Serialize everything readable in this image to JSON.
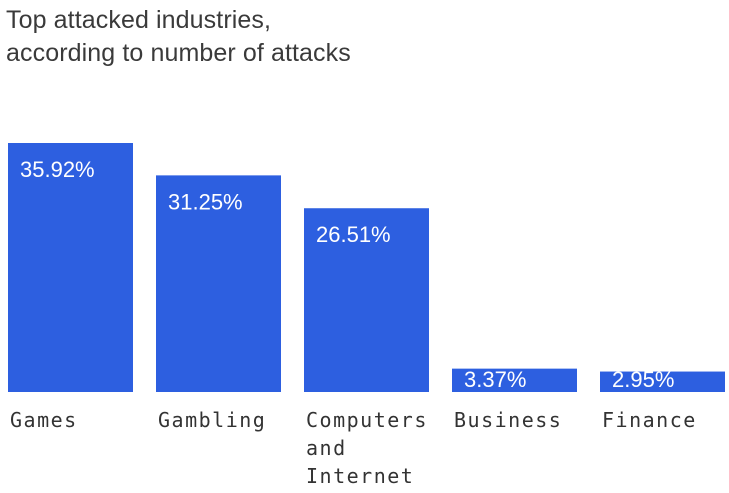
{
  "chart_data": {
    "type": "bar",
    "title_lines": [
      "Top attacked industries,",
      "according to number of attacks"
    ],
    "categories": [
      "Games",
      "Gambling",
      "Computers and Internet",
      "Business",
      "Finance"
    ],
    "category_label_lines": [
      [
        "Games"
      ],
      [
        "Gambling"
      ],
      [
        "Computers",
        "and",
        "Internet"
      ],
      [
        "Business"
      ],
      [
        "Finance"
      ]
    ],
    "values": [
      35.92,
      31.25,
      26.51,
      3.37,
      2.95
    ],
    "value_labels": [
      "35.92%",
      "31.25%",
      "26.51%",
      "3.37%",
      "2.95%"
    ],
    "unit": "%",
    "ylim": [
      0,
      36
    ],
    "grid": false,
    "legend": "none",
    "bar_color": "#2d5fe0"
  }
}
